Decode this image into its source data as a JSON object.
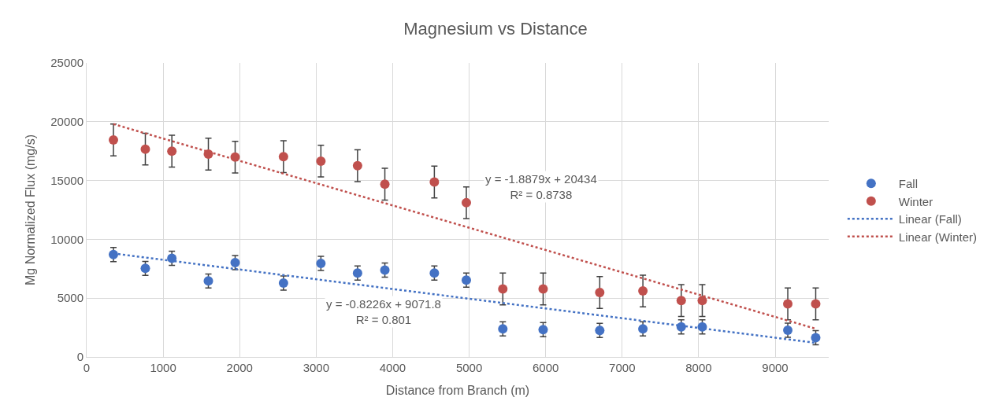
{
  "chart_data": {
    "type": "scatter",
    "title": "Magnesium vs Distance",
    "xlabel": "Distance from Branch (m)",
    "ylabel": "Mg Normalized Flux (mg/s)",
    "xlim": [
      0,
      9700
    ],
    "xticks": [
      0,
      1000,
      2000,
      3000,
      4000,
      5000,
      6000,
      7000,
      8000,
      9000
    ],
    "ylim": [
      0,
      25000
    ],
    "yticks": [
      0,
      5000,
      10000,
      15000,
      20000,
      25000
    ],
    "grid": true,
    "legend": "right",
    "marker": "circle",
    "series": [
      {
        "name": "Fall",
        "color": "#4472c4",
        "x": [
          350,
          767,
          1114,
          1591,
          1941,
          2573,
          3062,
          3541,
          3898,
          4545,
          4963,
          5440,
          5967,
          6707,
          7271,
          7772,
          8047,
          9165,
          9530
        ],
        "values": [
          8700,
          7530,
          8390,
          6460,
          8020,
          6290,
          7950,
          7140,
          7380,
          7140,
          6540,
          2390,
          2320,
          2250,
          2390,
          2560,
          2560,
          2270,
          1640
        ],
        "errors": [
          600,
          600,
          600,
          600,
          600,
          600,
          600,
          600,
          600,
          600,
          600,
          600,
          600,
          600,
          600,
          600,
          600,
          600,
          600
        ]
      },
      {
        "name": "Winter",
        "color": "#c0504d",
        "x": [
          350,
          767,
          1114,
          1591,
          1941,
          2573,
          3062,
          3541,
          3898,
          4545,
          4963,
          5440,
          5967,
          6707,
          7271,
          7772,
          8047,
          9165,
          9530
        ],
        "values": [
          18450,
          17670,
          17500,
          17250,
          16990,
          17030,
          16650,
          16260,
          14690,
          14870,
          13110,
          5780,
          5780,
          5480,
          5610,
          4800,
          4800,
          4510,
          4510
        ],
        "errors": [
          1350,
          1350,
          1350,
          1350,
          1350,
          1350,
          1350,
          1350,
          1350,
          1350,
          1350,
          1350,
          1350,
          1350,
          1350,
          1350,
          1350,
          1350,
          1350
        ]
      },
      {
        "name": "Linear (Fall)",
        "type": "line",
        "color": "#4472c4",
        "line_style": "dotted",
        "marker": "none",
        "x": [
          350,
          9530
        ],
        "values": [
          8800,
          1200
        ]
      },
      {
        "name": "Linear (Winter)",
        "type": "line",
        "color": "#c0504d",
        "line_style": "dotted",
        "marker": "none",
        "x": [
          350,
          9530
        ],
        "values": [
          19800,
          2400
        ]
      }
    ],
    "annotations": [
      "y = -0.8226x + 9071.8\nR² = 0.801",
      "y = -1.8879x + 20434\nR² = 0.8738"
    ]
  }
}
